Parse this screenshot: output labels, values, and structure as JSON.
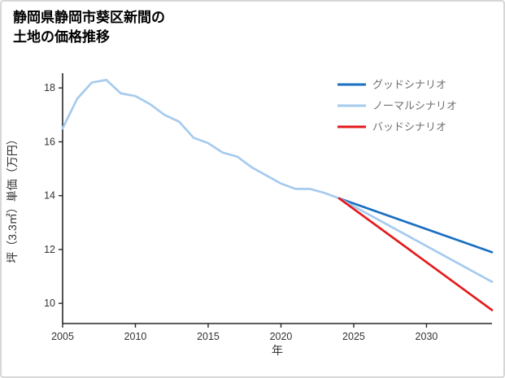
{
  "title": {
    "line1": "静岡県静岡市葵区新間の",
    "line2": "土地の価格推移"
  },
  "chart_data": {
    "type": "line",
    "title": "静岡県静岡市葵区新間の土地の価格推移",
    "xlabel": "年",
    "ylabel": "坪（3.3㎡）単価（万円）",
    "xlim": [
      2005,
      2034.5
    ],
    "ylim": [
      9.25,
      18.55
    ],
    "xticks": [
      2005,
      2010,
      2015,
      2020,
      2025,
      2030
    ],
    "yticks": [
      10,
      12,
      14,
      16,
      18
    ],
    "grid": false,
    "legend_position": "top-right",
    "colors": {
      "good": "#1a6fc2",
      "normal": "#a6cbee",
      "bad": "#e41a1c",
      "axis": "#262626",
      "tick_label": "#333333",
      "legend_text": "#6f6f6f"
    },
    "series": [
      {
        "name": "history",
        "color": "#a6cbee",
        "points": [
          [
            2005,
            16.5
          ],
          [
            2006,
            17.6
          ],
          [
            2007,
            18.2
          ],
          [
            2008,
            18.3
          ],
          [
            2009,
            17.8
          ],
          [
            2010,
            17.7
          ],
          [
            2011,
            17.4
          ],
          [
            2012,
            17.0
          ],
          [
            2013,
            16.75
          ],
          [
            2014,
            16.15
          ],
          [
            2015,
            15.95
          ],
          [
            2016,
            15.6
          ],
          [
            2017,
            15.45
          ],
          [
            2018,
            15.05
          ],
          [
            2019,
            14.75
          ],
          [
            2020,
            14.45
          ],
          [
            2021,
            14.25
          ],
          [
            2022,
            14.25
          ],
          [
            2023,
            14.1
          ],
          [
            2024,
            13.9
          ]
        ]
      },
      {
        "name": "good",
        "color": "#1a6fc2",
        "points": [
          [
            2024,
            13.9
          ],
          [
            2034.5,
            11.9
          ]
        ]
      },
      {
        "name": "normal",
        "color": "#a6cbee",
        "points": [
          [
            2024,
            13.9
          ],
          [
            2034.5,
            10.8
          ]
        ]
      },
      {
        "name": "bad",
        "color": "#e41a1c",
        "points": [
          [
            2024,
            13.9
          ],
          [
            2034.5,
            9.75
          ]
        ]
      }
    ],
    "legend": [
      {
        "label": "グッドシナリオ",
        "color": "#1a6fc2"
      },
      {
        "label": "ノーマルシナリオ",
        "color": "#a6cbee"
      },
      {
        "label": "バッドシナリオ",
        "color": "#e41a1c"
      }
    ]
  }
}
